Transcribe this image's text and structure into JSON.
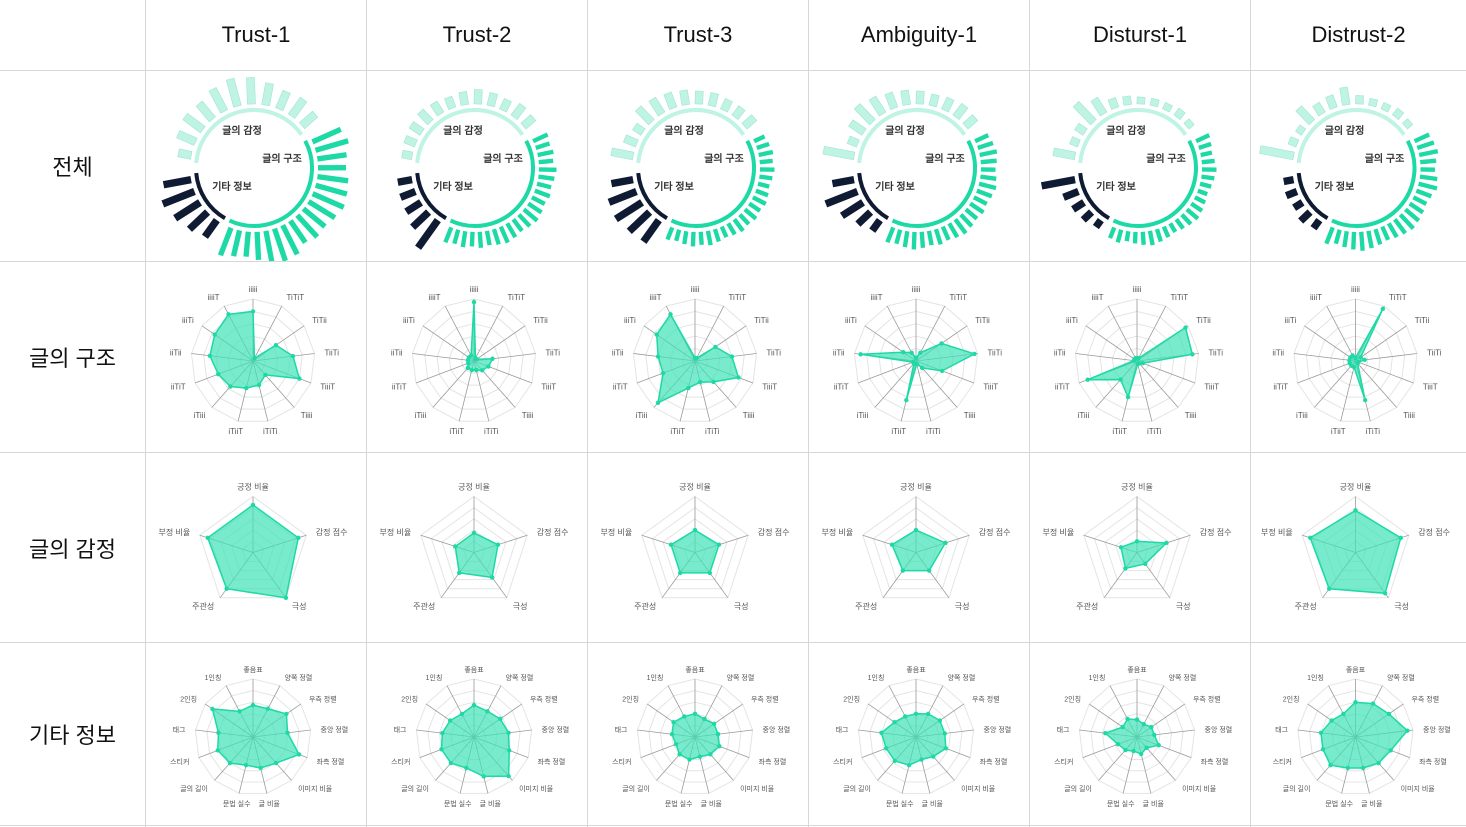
{
  "columns": [
    "Trust-1",
    "Trust-2",
    "Trust-3",
    "Ambiguity-1",
    "Disturst-1",
    "Distrust-2"
  ],
  "rows": [
    "전체",
    "글의 구조",
    "글의 감정",
    "기타 정보"
  ],
  "colors": {
    "primary": "#1dd9a5",
    "fill": "#3fe3b6",
    "light": "#bff3e3",
    "dark": "#0f1a33",
    "grid": "#cfcfcf"
  },
  "chart_data": [
    {
      "type": "radial-bar",
      "row": "전체",
      "group_labels": [
        "글의 감정",
        "글의 구조",
        "기타 정보"
      ],
      "charts": [
        {
          "column": "Trust-1",
          "group_order_note": "",
          "emotion": [
            0.55,
            0.7,
            0.85,
            1.0,
            0.8
          ],
          "structure": [
            0.3,
            0.5,
            0.6,
            0.55,
            0.7,
            0.8,
            0.75,
            0.6,
            0.5,
            0.55,
            0.45
          ],
          "other": [
            0.9,
            1.0,
            0.85,
            0.8,
            0.9,
            0.95,
            1.0,
            0.9,
            0.8,
            0.85,
            0.75,
            0.95,
            1.0,
            0.9,
            0.8,
            0.7,
            0.75,
            0.85
          ]
        },
        {
          "column": "Trust-2",
          "emotion": [
            1.0,
            0.6,
            0.45,
            0.4,
            0.35
          ],
          "structure": [
            0.2,
            0.25,
            0.3,
            0.35,
            0.3,
            0.25,
            0.3,
            0.35,
            0.3,
            0.25,
            0.35,
            0.3
          ],
          "other": [
            0.4,
            0.35,
            0.4,
            0.35,
            0.45,
            0.4,
            0.35,
            0.4,
            0.35,
            0.4,
            0.45,
            0.4,
            0.35,
            0.4,
            0.45,
            0.4,
            0.35,
            0.4,
            0.35,
            0.4,
            0.35,
            0.4
          ]
        },
        {
          "column": "Trust-3",
          "emotion": [
            0.75,
            0.8,
            0.9,
            0.85,
            0.6
          ],
          "structure": [
            0.6,
            0.3,
            0.2,
            0.5,
            0.45,
            0.4,
            0.35,
            0.3,
            0.3,
            0.25,
            0.25,
            0.3
          ],
          "other": [
            0.25,
            0.3,
            0.35,
            0.3,
            0.35,
            0.3,
            0.25,
            0.3,
            0.35,
            0.3,
            0.35,
            0.3,
            0.35,
            0.3,
            0.25,
            0.3,
            0.35,
            0.3,
            0.35,
            0.3,
            0.25,
            0.3
          ]
        },
        {
          "column": "Ambiguity-1",
          "emotion": [
            0.3,
            0.45,
            0.7,
            1.0,
            0.6
          ],
          "structure": [
            0.9,
            0.2,
            0.4,
            0.6,
            0.5,
            0.4,
            0.35,
            0.3,
            0.25,
            0.3,
            0.35,
            0.3
          ],
          "other": [
            0.35,
            0.4,
            0.45,
            0.4,
            0.35,
            0.4,
            0.45,
            0.4,
            0.35,
            0.4,
            0.35,
            0.4,
            0.45,
            0.4,
            0.35,
            0.4,
            0.35,
            0.4,
            0.45,
            0.4,
            0.35,
            0.4
          ]
        },
        {
          "column": "Disturst-1",
          "emotion": [
            0.15,
            0.25,
            0.3,
            0.4,
            1.0
          ],
          "structure": [
            0.6,
            0.15,
            0.2,
            0.7,
            0.45,
            0.2,
            0.15,
            0.1,
            0.1,
            0.1,
            0.15,
            0.1
          ],
          "other": [
            0.35,
            0.3,
            0.25,
            0.3,
            0.35,
            0.3,
            0.25,
            0.2,
            0.25,
            0.3,
            0.35,
            0.3,
            0.25,
            0.2,
            0.25,
            0.3,
            0.35,
            0.3,
            0.25,
            0.2,
            0.3,
            0.25
          ]
        },
        {
          "column": "Distrust-2",
          "emotion": [
            0.2,
            0.3,
            0.2,
            0.25,
            0.2
          ],
          "structure": [
            1.0,
            0.15,
            0.1,
            0.5,
            0.25,
            0.3,
            0.45,
            0.15,
            0.1,
            0.1,
            0.15,
            0.1
          ],
          "other": [
            0.4,
            0.45,
            0.5,
            0.4,
            0.35,
            0.45,
            0.5,
            0.4,
            0.35,
            0.4,
            0.45,
            0.5,
            0.45,
            0.4,
            0.35,
            0.4,
            0.45,
            0.5,
            0.45,
            0.4,
            0.35,
            0.45
          ]
        }
      ]
    },
    {
      "type": "radar",
      "row": "글의 구조",
      "axes": [
        "iiiii",
        "TiTiT",
        "TiTii",
        "TiiTi",
        "TiiiT",
        "Tiiii",
        "iTiTi",
        "iTiiT",
        "iTiii",
        "iiTiT",
        "iiTii",
        "iiiTi",
        "iiiiT"
      ],
      "rings": 5,
      "charts": [
        {
          "column": "Trust-1",
          "values": [
            0.8,
            0.05,
            0.45,
            0.65,
            0.8,
            0.3,
            0.4,
            0.45,
            0.55,
            0.6,
            0.7,
            0.75,
            0.85
          ]
        },
        {
          "column": "Trust-2",
          "values": [
            0.95,
            0.05,
            0.05,
            0.3,
            0.25,
            0.2,
            0.15,
            0.15,
            0.15,
            0.1,
            0.1,
            0.1,
            0.1
          ]
        },
        {
          "column": "Trust-3",
          "values": [
            0.05,
            0.05,
            0.4,
            0.6,
            0.75,
            0.45,
            0.35,
            0.45,
            0.9,
            0.55,
            0.6,
            0.75,
            0.85
          ]
        },
        {
          "column": "Ambiguity-1",
          "values": [
            0.05,
            0.15,
            0.5,
            0.95,
            0.45,
            0.15,
            0.05,
            0.65,
            0.05,
            0.05,
            0.9,
            0.25,
            0.15
          ]
        },
        {
          "column": "Disturst-1",
          "values": [
            0.05,
            0.05,
            0.95,
            0.9,
            0.1,
            0.05,
            0.05,
            0.6,
            0.4,
            0.85,
            0.05,
            0.05,
            0.05
          ]
        },
        {
          "column": "Distrust-2",
          "values": [
            0.05,
            0.95,
            0.1,
            0.15,
            0.05,
            0.05,
            0.65,
            0.1,
            0.1,
            0.1,
            0.1,
            0.1,
            0.1
          ]
        }
      ]
    },
    {
      "type": "radar",
      "row": "글의 감정",
      "axes": [
        "긍정 비율",
        "감정 점수",
        "극성",
        "주관성",
        "부정 비율"
      ],
      "rings": 5,
      "charts": [
        {
          "column": "Trust-1",
          "values": [
            0.85,
            0.85,
            1.0,
            0.8,
            0.85
          ]
        },
        {
          "column": "Trust-2",
          "values": [
            0.35,
            0.45,
            0.55,
            0.45,
            0.35
          ]
        },
        {
          "column": "Trust-3",
          "values": [
            0.4,
            0.45,
            0.45,
            0.45,
            0.45
          ]
        },
        {
          "column": "Ambiguity-1",
          "values": [
            0.4,
            0.55,
            0.4,
            0.4,
            0.45
          ]
        },
        {
          "column": "Disturst-1",
          "values": [
            0.2,
            0.55,
            0.25,
            0.35,
            0.3
          ]
        },
        {
          "column": "Distrust-2",
          "values": [
            0.75,
            0.85,
            0.9,
            0.8,
            0.85
          ]
        }
      ]
    },
    {
      "type": "radar",
      "row": "기타 정보",
      "axes": [
        "좋음표",
        "양쪽 정렬",
        "우측 정렬",
        "중앙 정렬",
        "좌측 정렬",
        "이미지 비율",
        "글 비율",
        "문법 실수",
        "글의 길이",
        "스티커",
        "태그",
        "2인칭",
        "1인칭"
      ],
      "rings": 5,
      "charts": [
        {
          "column": "Trust-1",
          "values": [
            0.55,
            0.55,
            0.7,
            0.6,
            0.85,
            0.6,
            0.55,
            0.5,
            0.6,
            0.65,
            0.6,
            0.85,
            0.5
          ]
        },
        {
          "column": "Trust-2",
          "values": [
            0.55,
            0.5,
            0.55,
            0.6,
            0.65,
            0.9,
            0.7,
            0.55,
            0.6,
            0.6,
            0.55,
            0.5,
            0.45
          ]
        },
        {
          "column": "Trust-3",
          "values": [
            0.4,
            0.35,
            0.4,
            0.4,
            0.45,
            0.4,
            0.35,
            0.4,
            0.4,
            0.35,
            0.4,
            0.45,
            0.4
          ]
        },
        {
          "column": "Ambiguity-1",
          "values": [
            0.4,
            0.45,
            0.5,
            0.5,
            0.55,
            0.45,
            0.4,
            0.5,
            0.55,
            0.55,
            0.6,
            0.45,
            0.4
          ]
        },
        {
          "column": "Disturst-1",
          "values": [
            0.3,
            0.25,
            0.3,
            0.3,
            0.4,
            0.25,
            0.3,
            0.25,
            0.3,
            0.35,
            0.55,
            0.3,
            0.35
          ]
        },
        {
          "column": "Distrust-2",
          "values": [
            0.6,
            0.65,
            0.7,
            0.9,
            0.65,
            0.6,
            0.55,
            0.55,
            0.65,
            0.6,
            0.6,
            0.5,
            0.45
          ]
        }
      ]
    }
  ]
}
